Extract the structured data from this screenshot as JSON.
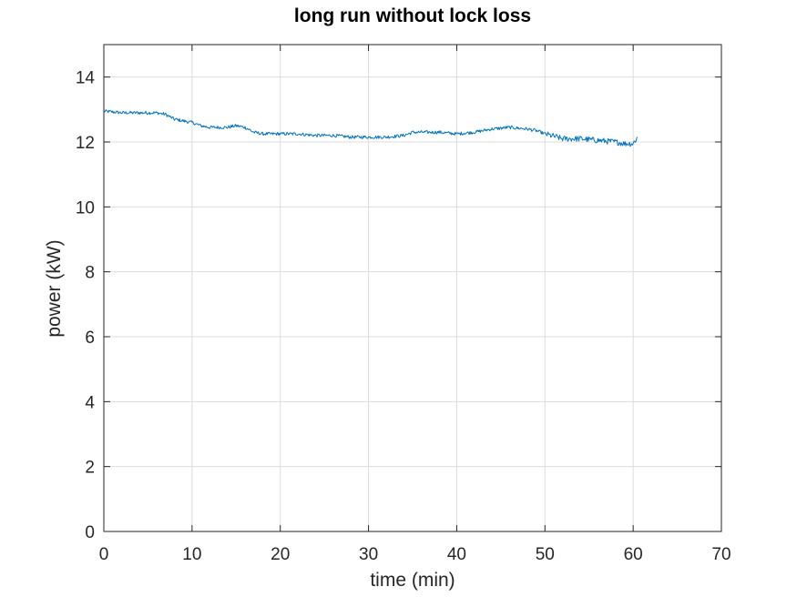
{
  "chart_data": {
    "type": "line",
    "title": "long run without lock loss",
    "xlabel": "time (min)",
    "ylabel": "power (kW)",
    "xlim": [
      0,
      70
    ],
    "ylim": [
      0,
      15
    ],
    "x_ticks": [
      "0",
      "10",
      "20",
      "30",
      "40",
      "50",
      "60",
      "70"
    ],
    "y_ticks": [
      "0",
      "2",
      "4",
      "6",
      "8",
      "10",
      "12",
      "14"
    ],
    "grid": true,
    "line_color": "#0072BD",
    "series": [
      {
        "x": [
          0,
          2,
          4,
          6,
          7,
          8,
          10,
          11,
          12,
          14,
          15,
          16,
          17,
          18,
          20,
          22,
          24,
          26,
          28,
          30,
          32,
          34,
          35,
          36,
          38,
          40,
          42,
          44,
          46,
          48,
          49,
          50,
          52,
          54,
          56,
          58,
          59,
          60,
          60.5
        ],
        "y": [
          12.95,
          12.9,
          12.9,
          12.9,
          12.85,
          12.7,
          12.6,
          12.5,
          12.45,
          12.45,
          12.5,
          12.45,
          12.3,
          12.25,
          12.25,
          12.25,
          12.2,
          12.2,
          12.15,
          12.15,
          12.15,
          12.2,
          12.3,
          12.3,
          12.3,
          12.25,
          12.3,
          12.4,
          12.45,
          12.4,
          12.35,
          12.25,
          12.1,
          12.1,
          12.05,
          12.0,
          11.95,
          11.95,
          12.15
        ]
      }
    ]
  }
}
